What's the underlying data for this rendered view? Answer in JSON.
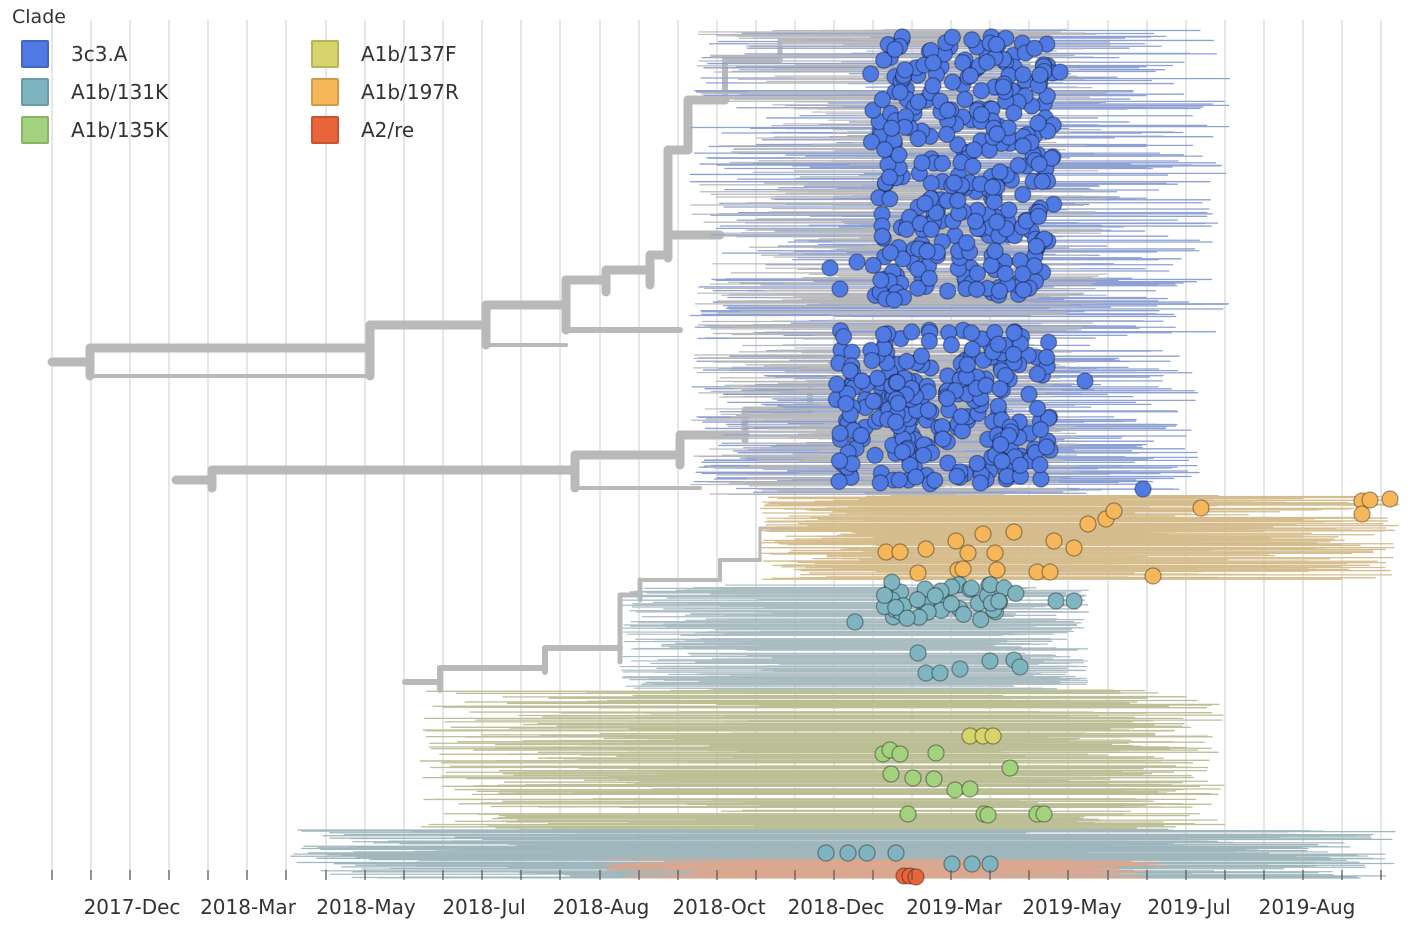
{
  "legend": {
    "title": "Clade",
    "items": [
      {
        "label": "3c3.A",
        "color": "#4f79e3"
      },
      {
        "label": "A1b/131K",
        "color": "#7fb5c0"
      },
      {
        "label": "A1b/135K",
        "color": "#a3d27e"
      },
      {
        "label": "A1b/137F",
        "color": "#d6d46a"
      },
      {
        "label": "A1b/197R",
        "color": "#f6b75a"
      },
      {
        "label": "A2/re",
        "color": "#e8643a"
      }
    ]
  },
  "axis": {
    "tick_labels": [
      "2017-Dec",
      "2018-Mar",
      "2018-May",
      "2018-Jul",
      "2018-Aug",
      "2018-Oct",
      "2018-Dec",
      "2019-Mar",
      "2019-May",
      "2019-Jul",
      "2019-Aug"
    ]
  },
  "colors": {
    "branch": "#b9b9b9",
    "grid": "#dddddd"
  }
}
